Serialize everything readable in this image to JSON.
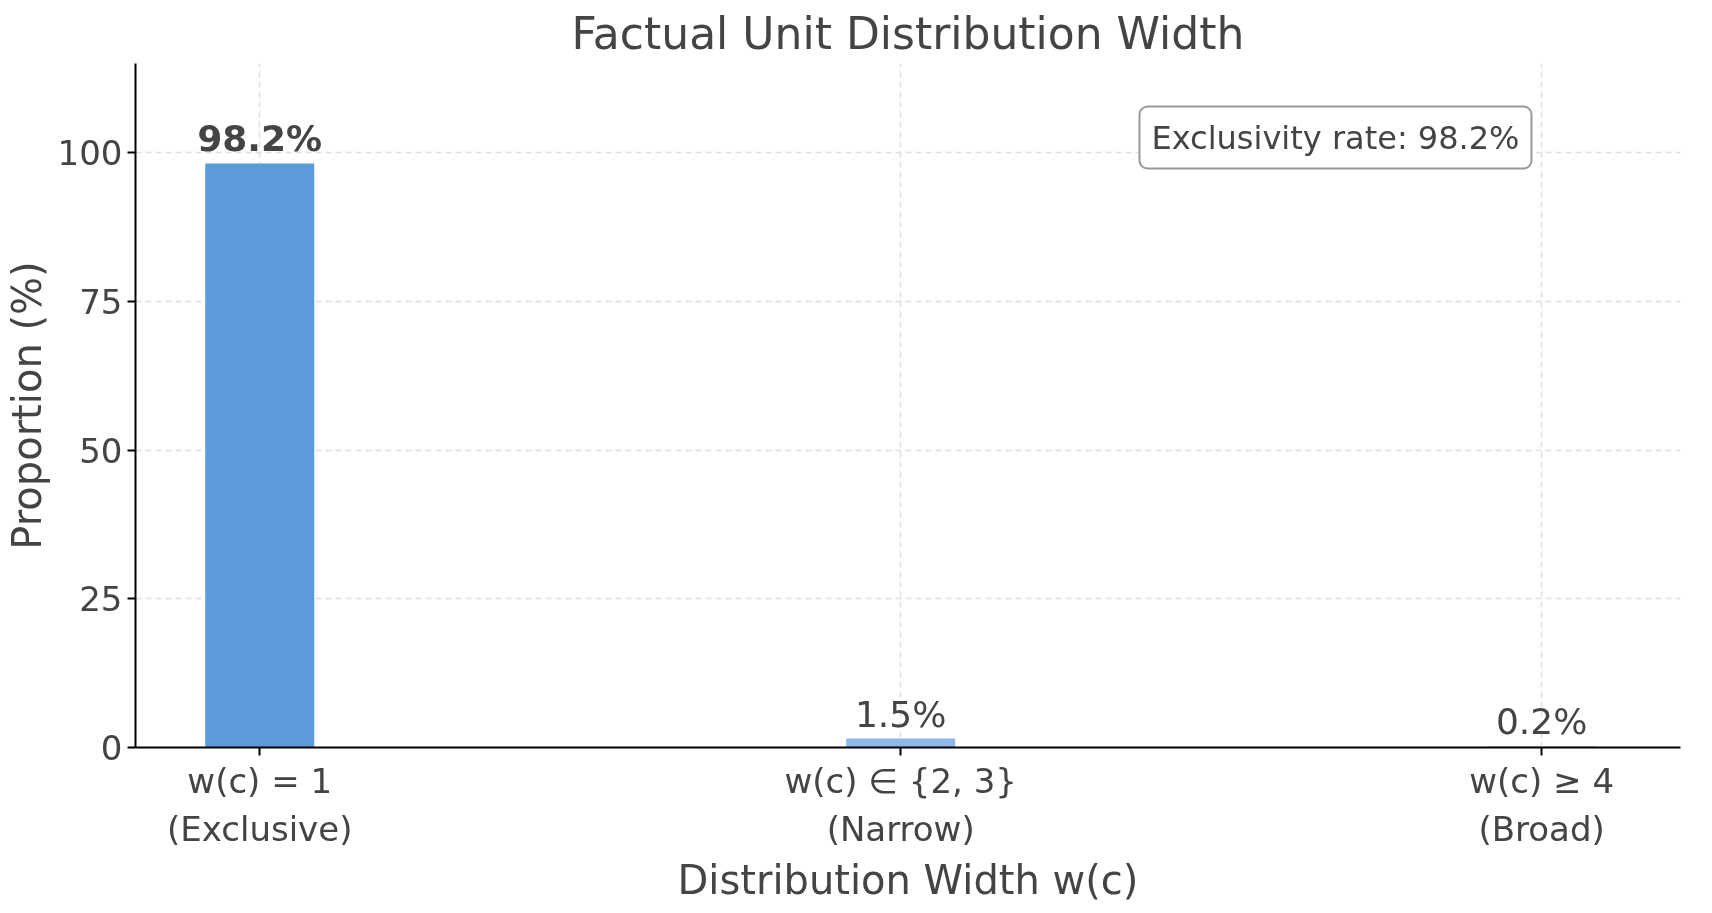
{
  "chart_data": {
    "type": "bar",
    "title": "Factual Unit Distribution Width",
    "xlabel": "Distribution Width w(c)",
    "ylabel": "Proportion (%)",
    "categories": [
      "w(c) = 1\n(Exclusive)",
      "w(c) ∈ {2, 3}\n(Narrow)",
      "w(c) ≥ 4\n(Broad)"
    ],
    "values": [
      98.2,
      1.5,
      0.2
    ],
    "colors": [
      "#5b9bdc",
      "#8db8e8",
      "#b8d2f0"
    ],
    "value_labels": [
      "98.2%",
      "1.5%",
      "0.2%"
    ],
    "ylim": [
      0,
      115
    ],
    "yticks": [
      0,
      25,
      50,
      75,
      100
    ],
    "grid": true,
    "annotations": [
      "Exclusivity rate: 98.2%"
    ]
  }
}
